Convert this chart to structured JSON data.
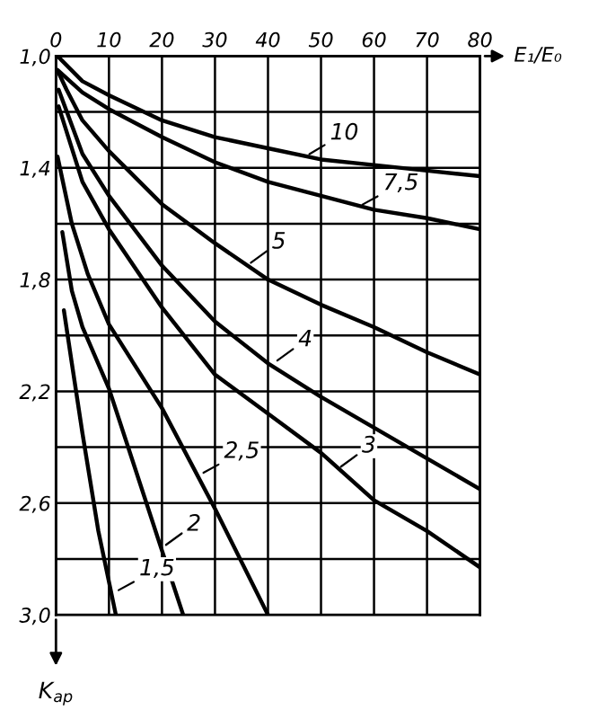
{
  "chart_data": {
    "type": "line",
    "xlabel": "E₁/E₀",
    "ylabel": "K$_{ар}$",
    "xlim": [
      0,
      80
    ],
    "xticks": [
      0,
      10,
      20,
      30,
      40,
      50,
      60,
      70,
      80
    ],
    "ylim": [
      3.0,
      1.0
    ],
    "yticks": [
      {
        "value": 1.0,
        "label": "1,0"
      },
      {
        "value": 1.2,
        "label": null
      },
      {
        "value": 1.4,
        "label": "1,4"
      },
      {
        "value": 1.6,
        "label": null
      },
      {
        "value": 1.8,
        "label": "1,8"
      },
      {
        "value": 2.0,
        "label": null
      },
      {
        "value": 2.2,
        "label": "2,2"
      },
      {
        "value": 2.4,
        "label": null
      },
      {
        "value": 2.6,
        "label": "2,6"
      },
      {
        "value": 2.8,
        "label": null
      },
      {
        "value": 3.0,
        "label": "3,0"
      }
    ],
    "grid": true,
    "marker": "none",
    "line_style": "solid",
    "series": [
      {
        "color": "#000000",
        "x": [
          0.3,
          5,
          10,
          20,
          30,
          40,
          50,
          60,
          70,
          80
        ],
        "values": [
          1.0,
          1.09,
          1.14,
          1.23,
          1.29,
          1.33,
          1.37,
          1.39,
          1.41,
          1.43
        ]
      },
      {
        "color": "#000000",
        "x": [
          0.3,
          5,
          10,
          20,
          30,
          40,
          50,
          60,
          70,
          80
        ],
        "values": [
          1.05,
          1.13,
          1.19,
          1.29,
          1.38,
          1.45,
          1.5,
          1.55,
          1.58,
          1.62
        ]
      },
      {
        "color": "#000000",
        "x": [
          0.5,
          2,
          5,
          10,
          20,
          30,
          40,
          50,
          60,
          70,
          80
        ],
        "values": [
          1.06,
          1.12,
          1.23,
          1.34,
          1.53,
          1.67,
          1.8,
          1.89,
          1.97,
          2.06,
          2.14
        ]
      },
      {
        "color": "#000000",
        "x": [
          0.5,
          5,
          10,
          20,
          30,
          40,
          50,
          60,
          70,
          80
        ],
        "values": [
          1.12,
          1.35,
          1.5,
          1.75,
          1.95,
          2.1,
          2.22,
          2.33,
          2.44,
          2.55
        ]
      },
      {
        "color": "#000000",
        "x": [
          0.5,
          5,
          10,
          20,
          30,
          40,
          50,
          60,
          70,
          80
        ],
        "values": [
          1.18,
          1.45,
          1.62,
          1.9,
          2.14,
          2.28,
          2.42,
          2.59,
          2.7,
          2.83
        ]
      },
      {
        "color": "#000000",
        "x": [
          0.3,
          3,
          6,
          10,
          20,
          30,
          40
        ],
        "values": [
          1.36,
          1.6,
          1.78,
          1.96,
          2.26,
          2.62,
          3.0
        ]
      },
      {
        "color": "#000000",
        "x": [
          1.2,
          3,
          5,
          10,
          20,
          24
        ],
        "values": [
          1.63,
          1.84,
          1.97,
          2.19,
          2.77,
          3.0
        ]
      },
      {
        "color": "#000000",
        "x": [
          1.5,
          3,
          5,
          8,
          11.3
        ],
        "values": [
          1.91,
          2.1,
          2.35,
          2.7,
          3.0
        ]
      }
    ],
    "annotations": [
      {
        "text": "10",
        "x": 47,
        "y": 1.36
      },
      {
        "text": "7,5",
        "x": 57,
        "y": 1.54
      },
      {
        "text": "5",
        "x": 36,
        "y": 1.75
      },
      {
        "text": "4",
        "x": 41,
        "y": 2.1
      },
      {
        "text": "3",
        "x": 53,
        "y": 2.48
      },
      {
        "text": "2,5",
        "x": 27,
        "y": 2.5
      },
      {
        "text": "2",
        "x": 20,
        "y": 2.76
      },
      {
        "text": "1,5",
        "x": 11,
        "y": 2.92
      }
    ]
  }
}
